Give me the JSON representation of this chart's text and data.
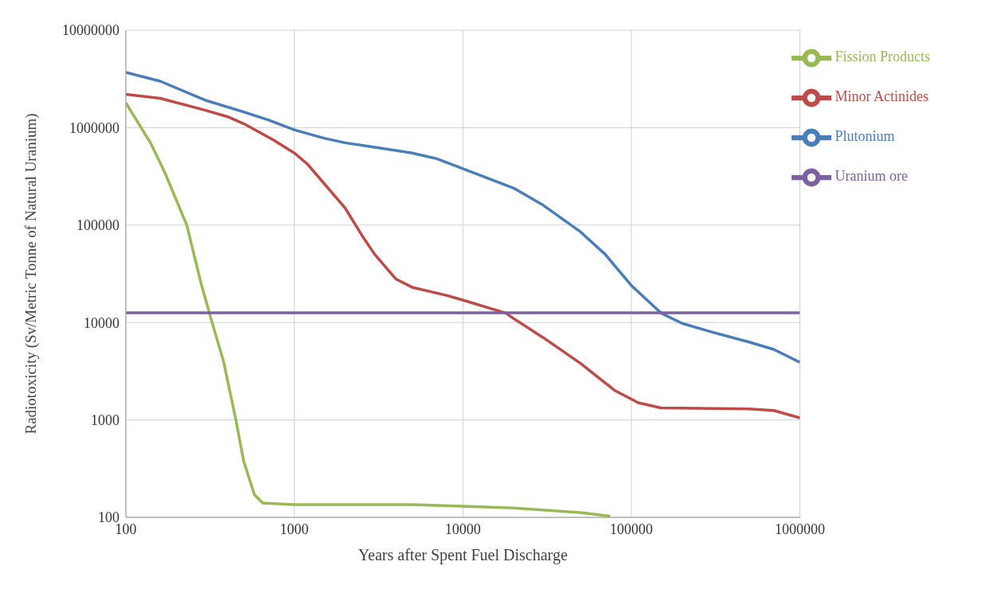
{
  "chart_data": {
    "type": "line",
    "xlabel": "Years after Spent Fuel Discharge",
    "ylabel": "Radiotoxicity (Sv/Metric Tonne of Natural Uranium)",
    "log": "xy",
    "grid": true,
    "legend": "top right",
    "xlim": [
      100,
      1000000
    ],
    "ylim": [
      100,
      10000000
    ],
    "xticks": [
      100,
      1000,
      10000,
      100000,
      1000000
    ],
    "yticks": [
      100,
      1000,
      10000,
      100000,
      1000000,
      10000000
    ],
    "series": [
      {
        "name": "Plutonium",
        "color": "#4a7ebb",
        "x": [
          100,
          160,
          300,
          500,
          700,
          1000,
          1500,
          2000,
          3000,
          5000,
          7000,
          10000,
          20000,
          30000,
          50000,
          70000,
          100000,
          150000,
          200000,
          300000,
          500000,
          700000,
          1000000
        ],
        "values": [
          3700000,
          3000000,
          1900000,
          1450000,
          1200000,
          950000,
          780000,
          700000,
          630000,
          550000,
          480000,
          380000,
          240000,
          160000,
          85000,
          50000,
          24000,
          12500,
          9800,
          8000,
          6300,
          5300,
          3900
        ]
      },
      {
        "name": "Minor Actinides",
        "color": "#be4b48",
        "x": [
          100,
          160,
          300,
          400,
          500,
          750,
          1000,
          1200,
          2000,
          2500,
          3000,
          4000,
          5000,
          8000,
          10000,
          18000,
          20000,
          30000,
          50000,
          80000,
          110000,
          150000,
          200000,
          500000,
          700000,
          1000000
        ],
        "values": [
          2200000,
          2000000,
          1500000,
          1300000,
          1100000,
          750000,
          550000,
          420000,
          150000,
          80000,
          50000,
          28000,
          23000,
          19000,
          17000,
          12500,
          11000,
          7000,
          3800,
          2000,
          1500,
          1330,
          1320,
          1300,
          1250,
          1050
        ]
      },
      {
        "name": "Fission Products",
        "color": "#98b954",
        "x": [
          100,
          140,
          170,
          230,
          280,
          320,
          380,
          450,
          500,
          580,
          650,
          1000,
          2000,
          5000,
          10000,
          20000,
          50000,
          75000
        ],
        "values": [
          1800000,
          700000,
          350000,
          100000,
          25000,
          11000,
          4000,
          1000,
          380,
          170,
          140,
          135,
          135,
          135,
          130,
          125,
          112,
          103
        ]
      },
      {
        "name": "Uranium ore",
        "color": "#7d60a0",
        "x": [
          100,
          1000000
        ],
        "values": [
          12600,
          12600
        ]
      }
    ]
  }
}
